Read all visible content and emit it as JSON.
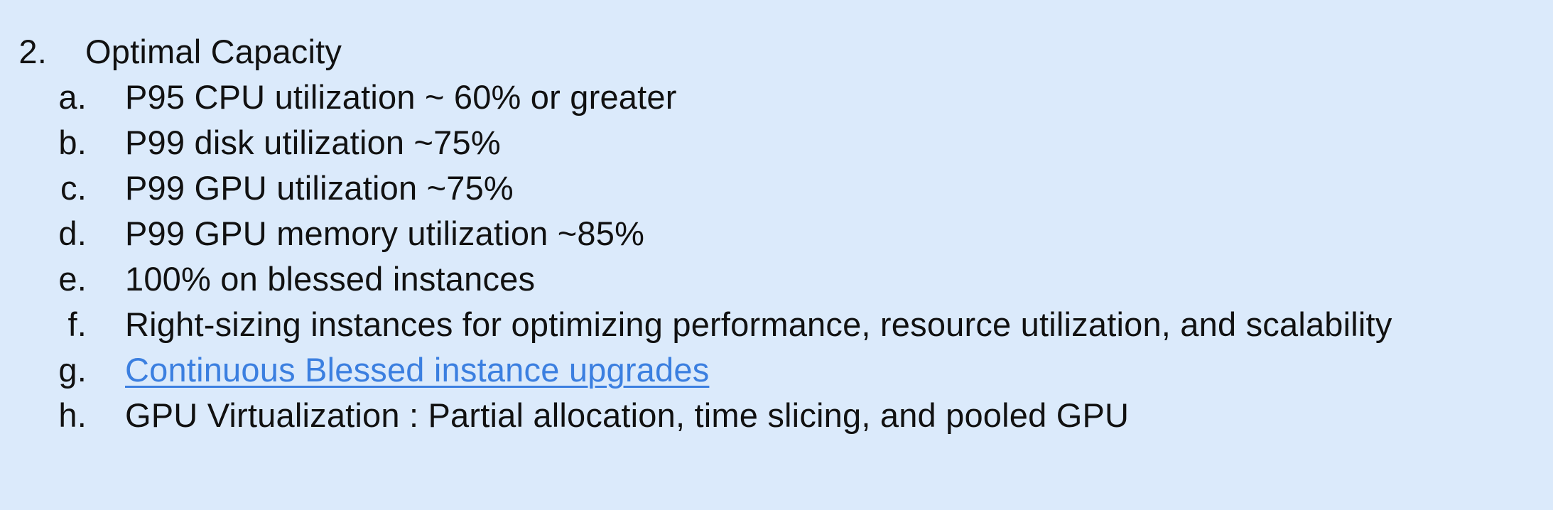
{
  "section": {
    "number": "2.",
    "title": "Optimal Capacity",
    "items": [
      {
        "marker": "a.",
        "text": "P95 CPU utilization ~ 60% or greater"
      },
      {
        "marker": "b.",
        "text": "P99 disk utilization ~75%"
      },
      {
        "marker": "c.",
        "text": "P99 GPU utilization ~75%"
      },
      {
        "marker": "d.",
        "text": "P99 GPU memory utilization ~85%"
      },
      {
        "marker": "e.",
        "text": "100% on blessed instances"
      },
      {
        "marker": "f.",
        "text": "Right-sizing instances for optimizing performance, resource utilization, and scalability"
      },
      {
        "marker": "g.",
        "text": "Continuous Blessed instance upgrades"
      },
      {
        "marker": "h.",
        "text": "GPU Virtualization : Partial allocation, time slicing, and pooled GPU"
      }
    ]
  },
  "colors": {
    "background": "#dbeafb",
    "text": "#111111",
    "link": "#3b7fe0"
  }
}
